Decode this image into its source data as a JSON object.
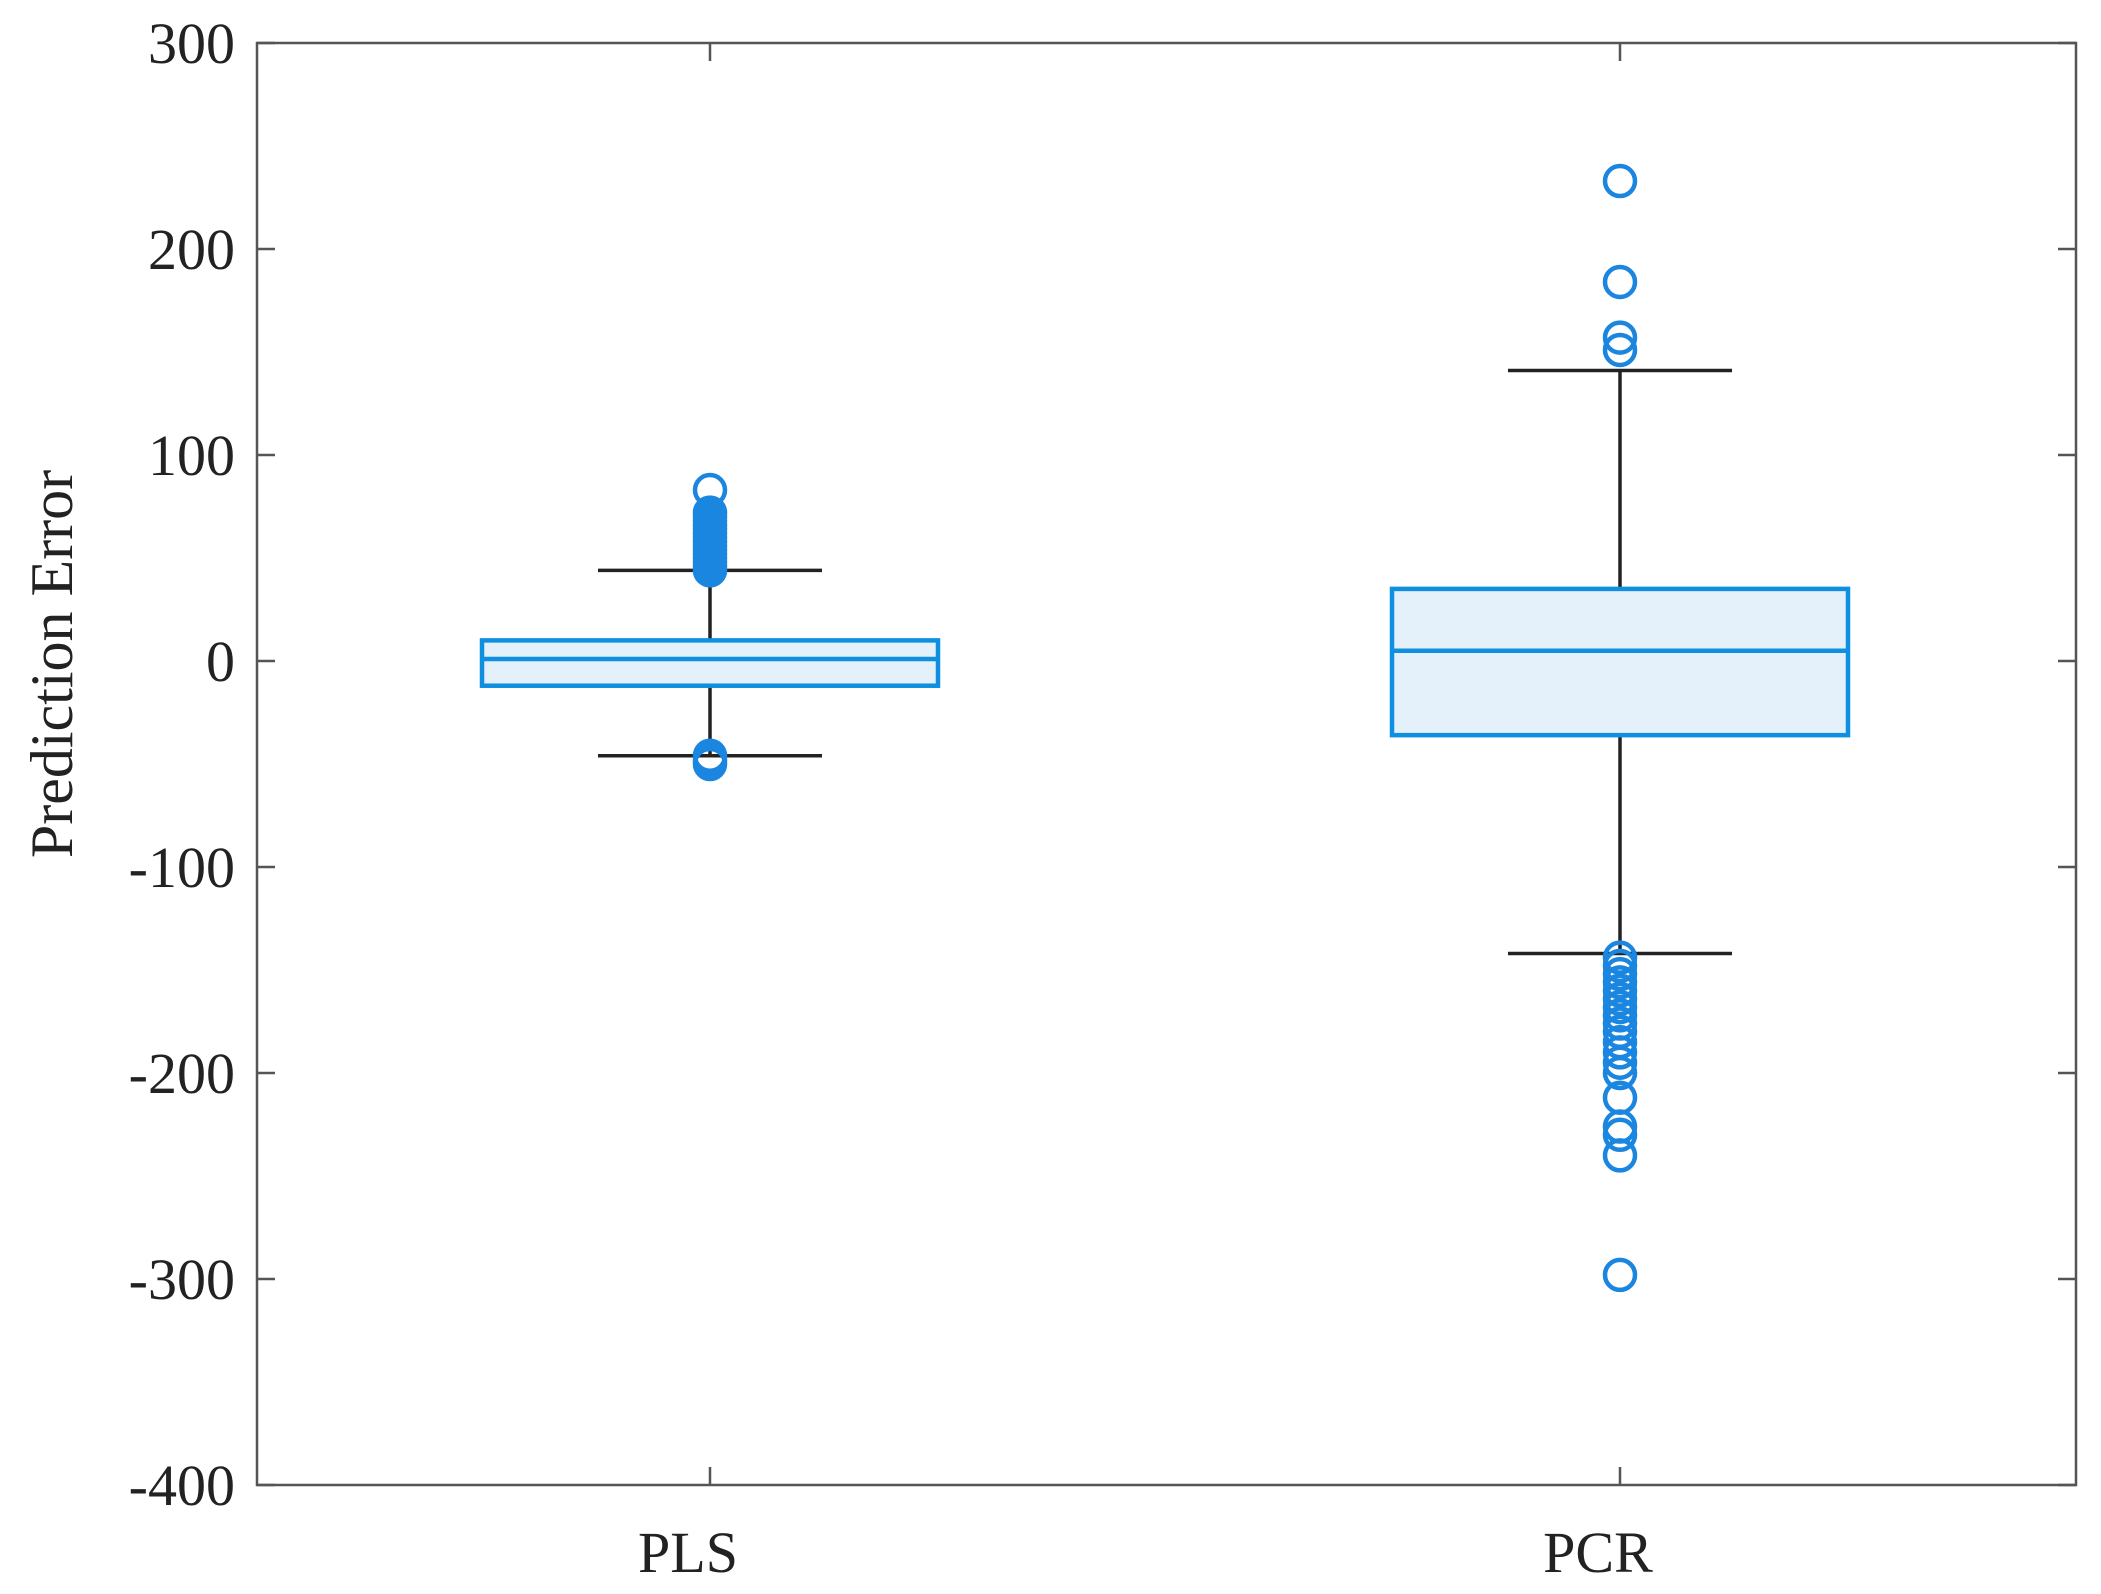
{
  "chart_data": {
    "type": "box",
    "title": "",
    "xlabel": "",
    "ylabel": "Prediction Error",
    "ylim": [
      -400,
      300
    ],
    "yticks": [
      300,
      200,
      100,
      0,
      -100,
      -200,
      -300,
      -400
    ],
    "ytick_labels": [
      "300",
      "200",
      "100",
      "0",
      "-100",
      "-200",
      "-300",
      "-400"
    ],
    "categories": [
      "PLS",
      "PCR"
    ],
    "grid": false,
    "legend": "none",
    "colors": {
      "box": "#0e8fdf",
      "box_fill": "#e4f1fa",
      "whisker": "#222222",
      "outlier": "#1a86e0",
      "axis": "#555555"
    },
    "boxes": [
      {
        "name": "PLS",
        "whisker_low": -46,
        "q1": -12,
        "median": 1,
        "q3": 10,
        "whisker_high": 44,
        "outliers": [
          83,
          72,
          70,
          68,
          66,
          64,
          62,
          60,
          58,
          56,
          54,
          52,
          50,
          48,
          46,
          44,
          -46,
          -48,
          -50
        ]
      },
      {
        "name": "PCR",
        "whisker_low": -142,
        "q1": -36,
        "median": 5,
        "q3": 35,
        "whisker_high": 141,
        "outliers": [
          233,
          184,
          157,
          151,
          -144,
          -148,
          -152,
          -156,
          -160,
          -164,
          -168,
          -172,
          -176,
          -180,
          -185,
          -190,
          -195,
          -200,
          -212,
          -226,
          -230,
          -240,
          -298
        ]
      }
    ]
  }
}
